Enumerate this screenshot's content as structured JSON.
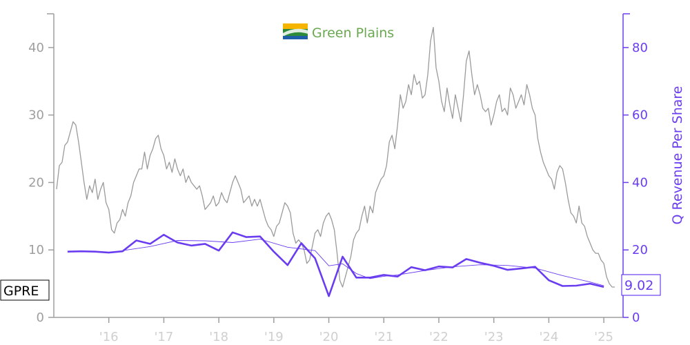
{
  "logo": {
    "text": "Green Plains"
  },
  "chart_data": {
    "type": "line",
    "ticker": "GPRE",
    "x_axis": {
      "ticks": [
        "'16",
        "'17",
        "'18",
        "'19",
        "'20",
        "'21",
        "'22",
        "'23",
        "'24",
        "'25"
      ],
      "range": [
        2015.0,
        2025.35
      ]
    },
    "y_left": {
      "ticks": [
        "0",
        "10",
        "20",
        "30",
        "40"
      ],
      "range": [
        0,
        45
      ]
    },
    "y_right": {
      "label": "Q Revenue Per Share",
      "ticks": [
        "0",
        "20",
        "40",
        "60",
        "80"
      ],
      "range": [
        0,
        90
      ]
    },
    "colors": {
      "price": "#9a9a9a",
      "revenue": "#6a3cf0",
      "axis": "#9e9e9e",
      "right_axis": "#6a3cf0"
    },
    "series": [
      {
        "axis": "left",
        "points": [
          [
            2015.05,
            19
          ],
          [
            2015.1,
            22.5
          ],
          [
            2015.15,
            23
          ],
          [
            2015.2,
            25.5
          ],
          [
            2015.25,
            26
          ],
          [
            2015.3,
            27.5
          ],
          [
            2015.35,
            29
          ],
          [
            2015.4,
            28.5
          ],
          [
            2015.45,
            26
          ],
          [
            2015.5,
            23
          ],
          [
            2015.55,
            20
          ],
          [
            2015.6,
            17.5
          ],
          [
            2015.65,
            19.5
          ],
          [
            2015.7,
            18.5
          ],
          [
            2015.75,
            20.5
          ],
          [
            2015.8,
            17.5
          ],
          [
            2015.85,
            19
          ],
          [
            2015.9,
            20
          ],
          [
            2015.95,
            17
          ],
          [
            2016.0,
            16
          ],
          [
            2016.05,
            13
          ],
          [
            2016.1,
            12.5
          ],
          [
            2016.15,
            14
          ],
          [
            2016.2,
            14.5
          ],
          [
            2016.25,
            16
          ],
          [
            2016.3,
            15
          ],
          [
            2016.35,
            17
          ],
          [
            2016.4,
            18
          ],
          [
            2016.45,
            20
          ],
          [
            2016.5,
            21
          ],
          [
            2016.55,
            22
          ],
          [
            2016.6,
            22
          ],
          [
            2016.65,
            24.5
          ],
          [
            2016.7,
            22
          ],
          [
            2016.75,
            24
          ],
          [
            2016.8,
            25
          ],
          [
            2016.85,
            26.5
          ],
          [
            2016.9,
            27
          ],
          [
            2016.95,
            25
          ],
          [
            2017.0,
            24
          ],
          [
            2017.05,
            22
          ],
          [
            2017.1,
            23
          ],
          [
            2017.15,
            21.5
          ],
          [
            2017.2,
            23.5
          ],
          [
            2017.25,
            22
          ],
          [
            2017.3,
            21
          ],
          [
            2017.35,
            22
          ],
          [
            2017.4,
            20
          ],
          [
            2017.45,
            21
          ],
          [
            2017.5,
            20
          ],
          [
            2017.55,
            19.5
          ],
          [
            2017.6,
            19
          ],
          [
            2017.65,
            19.5
          ],
          [
            2017.7,
            18
          ],
          [
            2017.75,
            16
          ],
          [
            2017.8,
            16.5
          ],
          [
            2017.85,
            17
          ],
          [
            2017.9,
            18
          ],
          [
            2017.95,
            16.5
          ],
          [
            2018.0,
            17
          ],
          [
            2018.05,
            18.5
          ],
          [
            2018.1,
            17.5
          ],
          [
            2018.15,
            17
          ],
          [
            2018.2,
            18.5
          ],
          [
            2018.25,
            20
          ],
          [
            2018.3,
            21
          ],
          [
            2018.35,
            20
          ],
          [
            2018.4,
            19
          ],
          [
            2018.45,
            17
          ],
          [
            2018.5,
            17.5
          ],
          [
            2018.55,
            18
          ],
          [
            2018.6,
            16.5
          ],
          [
            2018.65,
            17.5
          ],
          [
            2018.7,
            16.5
          ],
          [
            2018.75,
            17.5
          ],
          [
            2018.8,
            16
          ],
          [
            2018.85,
            14.5
          ],
          [
            2018.9,
            13.5
          ],
          [
            2018.95,
            13
          ],
          [
            2019.0,
            12
          ],
          [
            2019.05,
            13.5
          ],
          [
            2019.1,
            14
          ],
          [
            2019.15,
            15.5
          ],
          [
            2019.2,
            17
          ],
          [
            2019.25,
            16.5
          ],
          [
            2019.3,
            15.5
          ],
          [
            2019.35,
            12.5
          ],
          [
            2019.4,
            11
          ],
          [
            2019.45,
            11.5
          ],
          [
            2019.5,
            11
          ],
          [
            2019.55,
            10
          ],
          [
            2019.6,
            8
          ],
          [
            2019.65,
            8.5
          ],
          [
            2019.7,
            10.5
          ],
          [
            2019.75,
            12.5
          ],
          [
            2019.8,
            13
          ],
          [
            2019.85,
            12
          ],
          [
            2019.9,
            14
          ],
          [
            2019.95,
            15
          ],
          [
            2020.0,
            15.5
          ],
          [
            2020.05,
            14.5
          ],
          [
            2020.1,
            13
          ],
          [
            2020.15,
            9.5
          ],
          [
            2020.2,
            5.5
          ],
          [
            2020.25,
            4.5
          ],
          [
            2020.3,
            6
          ],
          [
            2020.35,
            7.5
          ],
          [
            2020.4,
            9
          ],
          [
            2020.45,
            11.5
          ],
          [
            2020.5,
            12.5
          ],
          [
            2020.55,
            13
          ],
          [
            2020.6,
            15
          ],
          [
            2020.65,
            16.5
          ],
          [
            2020.7,
            14
          ],
          [
            2020.75,
            16.5
          ],
          [
            2020.8,
            15.5
          ],
          [
            2020.85,
            18.5
          ],
          [
            2020.9,
            19.5
          ],
          [
            2020.95,
            20.5
          ],
          [
            2021.0,
            21
          ],
          [
            2021.05,
            22.5
          ],
          [
            2021.1,
            26
          ],
          [
            2021.15,
            27
          ],
          [
            2021.2,
            25
          ],
          [
            2021.25,
            28.5
          ],
          [
            2021.3,
            33
          ],
          [
            2021.35,
            31
          ],
          [
            2021.4,
            32
          ],
          [
            2021.45,
            34.5
          ],
          [
            2021.5,
            33
          ],
          [
            2021.55,
            36
          ],
          [
            2021.6,
            34.5
          ],
          [
            2021.65,
            35
          ],
          [
            2021.7,
            32.5
          ],
          [
            2021.75,
            33
          ],
          [
            2021.8,
            36
          ],
          [
            2021.85,
            41
          ],
          [
            2021.9,
            43
          ],
          [
            2021.95,
            37
          ],
          [
            2022.0,
            35
          ],
          [
            2022.05,
            32
          ],
          [
            2022.1,
            30.5
          ],
          [
            2022.15,
            34
          ],
          [
            2022.2,
            31.5
          ],
          [
            2022.25,
            29.5
          ],
          [
            2022.3,
            33
          ],
          [
            2022.35,
            31
          ],
          [
            2022.4,
            29
          ],
          [
            2022.45,
            33
          ],
          [
            2022.5,
            38
          ],
          [
            2022.55,
            39.5
          ],
          [
            2022.6,
            36
          ],
          [
            2022.65,
            33
          ],
          [
            2022.7,
            34.5
          ],
          [
            2022.75,
            33
          ],
          [
            2022.8,
            31
          ],
          [
            2022.85,
            30.5
          ],
          [
            2022.9,
            31
          ],
          [
            2022.95,
            28.5
          ],
          [
            2023.0,
            30
          ],
          [
            2023.05,
            32
          ],
          [
            2023.1,
            33
          ],
          [
            2023.15,
            30.5
          ],
          [
            2023.2,
            31
          ],
          [
            2023.25,
            30
          ],
          [
            2023.3,
            34
          ],
          [
            2023.35,
            33
          ],
          [
            2023.4,
            31
          ],
          [
            2023.45,
            32
          ],
          [
            2023.5,
            33
          ],
          [
            2023.55,
            31.5
          ],
          [
            2023.6,
            34.5
          ],
          [
            2023.65,
            33
          ],
          [
            2023.7,
            31
          ],
          [
            2023.75,
            30
          ],
          [
            2023.8,
            26.5
          ],
          [
            2023.85,
            24.5
          ],
          [
            2023.9,
            23
          ],
          [
            2023.95,
            22
          ],
          [
            2024.0,
            21
          ],
          [
            2024.05,
            20.5
          ],
          [
            2024.1,
            19
          ],
          [
            2024.15,
            21.5
          ],
          [
            2024.2,
            22.5
          ],
          [
            2024.25,
            22
          ],
          [
            2024.3,
            20
          ],
          [
            2024.35,
            17.5
          ],
          [
            2024.4,
            15.5
          ],
          [
            2024.45,
            15
          ],
          [
            2024.5,
            14
          ],
          [
            2024.55,
            16.5
          ],
          [
            2024.6,
            14
          ],
          [
            2024.65,
            13.5
          ],
          [
            2024.7,
            12
          ],
          [
            2024.75,
            11
          ],
          [
            2024.8,
            10
          ],
          [
            2024.85,
            9.5
          ],
          [
            2024.9,
            9.5
          ],
          [
            2024.95,
            8.5
          ],
          [
            2025.0,
            8
          ],
          [
            2025.05,
            6
          ],
          [
            2025.1,
            5
          ],
          [
            2025.15,
            4.5
          ],
          [
            2025.2,
            4.5
          ]
        ]
      },
      {
        "axis": "right",
        "points": [
          [
            2015.25,
            19.5
          ],
          [
            2015.5,
            19.6
          ],
          [
            2015.75,
            19.5
          ],
          [
            2016.0,
            19.2
          ],
          [
            2016.25,
            19.6
          ],
          [
            2016.5,
            22.8
          ],
          [
            2016.75,
            21.8
          ],
          [
            2017.0,
            24.5
          ],
          [
            2017.25,
            22.2
          ],
          [
            2017.5,
            21.3
          ],
          [
            2017.75,
            21.8
          ],
          [
            2018.0,
            19.8
          ],
          [
            2018.25,
            25.2
          ],
          [
            2018.5,
            23.8
          ],
          [
            2018.75,
            24.0
          ],
          [
            2019.0,
            19.5
          ],
          [
            2019.25,
            15.5
          ],
          [
            2019.5,
            22.0
          ],
          [
            2019.75,
            17.5
          ],
          [
            2020.0,
            6.3
          ],
          [
            2020.25,
            18.0
          ],
          [
            2020.5,
            11.8
          ],
          [
            2020.75,
            11.8
          ],
          [
            2021.0,
            12.6
          ],
          [
            2021.25,
            12.1
          ],
          [
            2021.5,
            14.9
          ],
          [
            2021.75,
            14.0
          ],
          [
            2022.0,
            15.1
          ],
          [
            2022.25,
            14.8
          ],
          [
            2022.5,
            17.3
          ],
          [
            2022.75,
            16.2
          ],
          [
            2023.0,
            15.3
          ],
          [
            2023.25,
            14.1
          ],
          [
            2023.5,
            14.5
          ],
          [
            2023.75,
            15.0
          ],
          [
            2024.0,
            11.0
          ],
          [
            2024.25,
            9.3
          ],
          [
            2024.5,
            9.4
          ],
          [
            2024.75,
            10.0
          ],
          [
            2025.0,
            9.02
          ]
        ]
      },
      {
        "axis": "right",
        "points": [
          [
            2016.25,
            19.8
          ],
          [
            2016.75,
            21.0
          ],
          [
            2017.25,
            22.8
          ],
          [
            2017.75,
            22.7
          ],
          [
            2018.25,
            22.2
          ],
          [
            2018.75,
            23.2
          ],
          [
            2019.25,
            20.8
          ],
          [
            2019.75,
            19.8
          ],
          [
            2020.0,
            15.3
          ],
          [
            2020.25,
            15.9
          ],
          [
            2020.5,
            13.0
          ],
          [
            2020.75,
            11.5
          ],
          [
            2021.0,
            12.2
          ],
          [
            2021.25,
            12.6
          ],
          [
            2021.75,
            13.9
          ],
          [
            2022.25,
            15.0
          ],
          [
            2022.75,
            15.6
          ],
          [
            2023.25,
            15.4
          ],
          [
            2023.75,
            14.6
          ],
          [
            2024.25,
            12.4
          ],
          [
            2024.75,
            10.5
          ],
          [
            2025.0,
            9.4
          ]
        ]
      }
    ],
    "last_value": "9.02"
  }
}
